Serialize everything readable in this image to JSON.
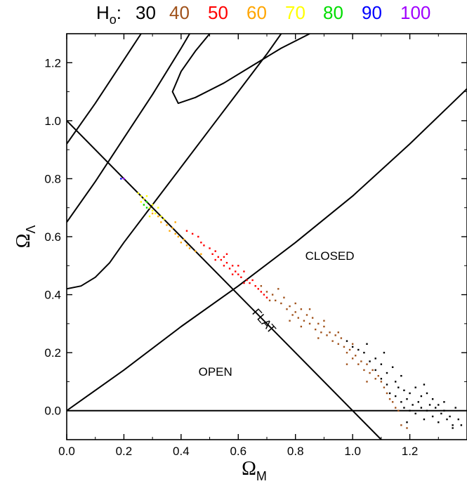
{
  "chart_data": {
    "type": "scatter",
    "legend": {
      "symbol": "H",
      "subscript": "o",
      "separator": ":",
      "entries": [
        {
          "label": "30",
          "color": "#000000"
        },
        {
          "label": "40",
          "color": "#a0521b"
        },
        {
          "label": "50",
          "color": "#ff0000"
        },
        {
          "label": "60",
          "color": "#ffa500"
        },
        {
          "label": "70",
          "color": "#ffff00"
        },
        {
          "label": "80",
          "color": "#00dd00"
        },
        {
          "label": "90",
          "color": "#0000ff"
        },
        {
          "label": "100",
          "color": "#a000ff"
        }
      ]
    },
    "xlabel": {
      "symbol": "Ω",
      "subscript": "M"
    },
    "ylabel": {
      "symbol": "Ω",
      "subscript": "Λ"
    },
    "xlim": [
      0.0,
      1.4
    ],
    "ylim": [
      -0.1,
      1.3
    ],
    "xticks": [
      "0.0",
      "0.2",
      "0.4",
      "0.6",
      "0.8",
      "1.0",
      "1.2"
    ],
    "yticks": [
      "0.0",
      "0.2",
      "0.4",
      "0.6",
      "0.8",
      "1.0",
      "1.2"
    ],
    "grid": false,
    "annotations": [
      {
        "text": "CLOSED",
        "x": 0.92,
        "y": 0.52
      },
      {
        "text": "FLAT",
        "x": 0.68,
        "y": 0.3,
        "rotation": -48
      },
      {
        "text": "OPEN",
        "x": 0.52,
        "y": 0.12
      }
    ],
    "reference_lines": [
      {
        "name": "flat",
        "points": [
          [
            0.0,
            1.0
          ],
          [
            1.1,
            -0.1
          ]
        ]
      },
      {
        "name": "zero",
        "points": [
          [
            0.0,
            0.0
          ],
          [
            1.4,
            0.0
          ]
        ]
      }
    ],
    "age_curves": [
      {
        "points": [
          [
            0.0,
            0.0
          ],
          [
            0.2,
            0.14
          ],
          [
            0.4,
            0.29
          ],
          [
            0.6,
            0.43
          ],
          [
            0.8,
            0.58
          ],
          [
            1.0,
            0.74
          ],
          [
            1.2,
            0.92
          ],
          [
            1.4,
            1.11
          ]
        ]
      },
      {
        "points": [
          [
            0.0,
            0.42
          ],
          [
            0.05,
            0.43
          ],
          [
            0.1,
            0.46
          ],
          [
            0.15,
            0.51
          ],
          [
            0.2,
            0.58
          ],
          [
            0.3,
            0.71
          ],
          [
            0.4,
            0.84
          ],
          [
            0.5,
            0.97
          ],
          [
            0.6,
            1.1
          ],
          [
            0.7,
            1.23
          ],
          [
            0.75,
            1.3
          ]
        ]
      },
      {
        "points": [
          [
            0.0,
            0.65
          ],
          [
            0.1,
            0.79
          ],
          [
            0.2,
            0.94
          ],
          [
            0.3,
            1.09
          ],
          [
            0.4,
            1.25
          ],
          [
            0.43,
            1.3
          ]
        ]
      },
      {
        "points": [
          [
            0.0,
            0.92
          ],
          [
            0.1,
            1.06
          ],
          [
            0.2,
            1.21
          ],
          [
            0.26,
            1.3
          ]
        ]
      },
      {
        "points": [
          [
            0.5,
            1.3
          ],
          [
            0.45,
            1.24
          ],
          [
            0.4,
            1.17
          ],
          [
            0.37,
            1.1
          ],
          [
            0.39,
            1.06
          ],
          [
            0.45,
            1.08
          ],
          [
            0.55,
            1.13
          ],
          [
            0.65,
            1.19
          ],
          [
            0.75,
            1.25
          ],
          [
            0.85,
            1.3
          ]
        ]
      }
    ],
    "series": [
      {
        "name": "30",
        "color": "#000000",
        "points": [
          [
            0.98,
            0.24
          ],
          [
            1.0,
            0.22
          ],
          [
            1.02,
            0.21
          ],
          [
            1.04,
            0.2
          ],
          [
            1.05,
            0.23
          ],
          [
            1.06,
            0.17
          ],
          [
            1.08,
            0.18
          ],
          [
            1.08,
            0.14
          ],
          [
            1.1,
            0.16
          ],
          [
            1.1,
            0.11
          ],
          [
            1.12,
            0.13
          ],
          [
            1.12,
            0.09
          ],
          [
            1.13,
            0.06
          ],
          [
            1.15,
            0.1
          ],
          [
            1.15,
            0.05
          ],
          [
            1.16,
            0.08
          ],
          [
            1.17,
            0.03
          ],
          [
            1.18,
            0.07
          ],
          [
            1.18,
            0.01
          ],
          [
            1.19,
            0.04
          ],
          [
            1.2,
            0.06
          ],
          [
            1.2,
            0.0
          ],
          [
            1.21,
            0.02
          ],
          [
            1.22,
            -0.01
          ],
          [
            1.23,
            0.03
          ],
          [
            1.24,
            0.01
          ],
          [
            1.25,
            -0.03
          ],
          [
            1.26,
            0.0
          ],
          [
            1.27,
            0.02
          ],
          [
            1.28,
            -0.02
          ],
          [
            1.29,
            0.01
          ],
          [
            1.3,
            -0.04
          ],
          [
            1.31,
            -0.01
          ],
          [
            1.32,
            0.0
          ],
          [
            1.33,
            -0.03
          ],
          [
            1.34,
            -0.02
          ],
          [
            1.35,
            -0.05
          ],
          [
            1.36,
            0.01
          ],
          [
            1.37,
            -0.03
          ],
          [
            1.38,
            -0.05
          ],
          [
            1.22,
            0.08
          ],
          [
            1.24,
            0.05
          ],
          [
            1.26,
            0.06
          ],
          [
            1.17,
            0.12
          ],
          [
            1.14,
            0.15
          ],
          [
            1.11,
            0.2
          ],
          [
            1.28,
            0.04
          ],
          [
            1.3,
            0.02
          ],
          [
            1.32,
            0.03
          ],
          [
            1.19,
            -0.04
          ],
          [
            1.25,
            0.09
          ],
          [
            1.35,
            -0.06
          ]
        ]
      },
      {
        "name": "40",
        "color": "#a0521b",
        "points": [
          [
            0.68,
            0.43
          ],
          [
            0.7,
            0.41
          ],
          [
            0.72,
            0.4
          ],
          [
            0.73,
            0.38
          ],
          [
            0.75,
            0.37
          ],
          [
            0.76,
            0.39
          ],
          [
            0.77,
            0.35
          ],
          [
            0.78,
            0.36
          ],
          [
            0.79,
            0.33
          ],
          [
            0.8,
            0.34
          ],
          [
            0.81,
            0.32
          ],
          [
            0.82,
            0.35
          ],
          [
            0.83,
            0.31
          ],
          [
            0.84,
            0.33
          ],
          [
            0.85,
            0.3
          ],
          [
            0.86,
            0.32
          ],
          [
            0.87,
            0.28
          ],
          [
            0.88,
            0.3
          ],
          [
            0.89,
            0.27
          ],
          [
            0.9,
            0.29
          ],
          [
            0.91,
            0.26
          ],
          [
            0.92,
            0.27
          ],
          [
            0.93,
            0.24
          ],
          [
            0.94,
            0.26
          ],
          [
            0.95,
            0.23
          ],
          [
            0.96,
            0.25
          ],
          [
            0.97,
            0.22
          ],
          [
            0.98,
            0.2
          ],
          [
            0.99,
            0.21
          ],
          [
            1.0,
            0.18
          ],
          [
            1.01,
            0.19
          ],
          [
            1.02,
            0.16
          ],
          [
            1.03,
            0.17
          ],
          [
            1.04,
            0.14
          ],
          [
            1.05,
            0.16
          ],
          [
            1.06,
            0.13
          ],
          [
            1.07,
            0.14
          ],
          [
            1.08,
            0.11
          ],
          [
            1.09,
            0.12
          ],
          [
            1.1,
            0.1
          ],
          [
            1.11,
            0.08
          ],
          [
            1.12,
            0.06
          ],
          [
            1.13,
            0.04
          ],
          [
            1.14,
            0.03
          ],
          [
            1.15,
            0.01
          ],
          [
            1.16,
            0.0
          ],
          [
            1.17,
            -0.05
          ],
          [
            1.19,
            -0.06
          ],
          [
            0.74,
            0.42
          ],
          [
            0.8,
            0.37
          ],
          [
            0.85,
            0.35
          ],
          [
            0.9,
            0.31
          ],
          [
            0.95,
            0.27
          ],
          [
            1.0,
            0.23
          ],
          [
            0.78,
            0.31
          ],
          [
            0.88,
            0.25
          ],
          [
            0.98,
            0.16
          ],
          [
            1.05,
            0.1
          ],
          [
            0.71,
            0.38
          ],
          [
            0.82,
            0.29
          ]
        ]
      },
      {
        "name": "50",
        "color": "#ff0000",
        "points": [
          [
            0.42,
            0.62
          ],
          [
            0.44,
            0.61
          ],
          [
            0.46,
            0.6
          ],
          [
            0.47,
            0.58
          ],
          [
            0.48,
            0.57
          ],
          [
            0.5,
            0.56
          ],
          [
            0.51,
            0.54
          ],
          [
            0.52,
            0.55
          ],
          [
            0.53,
            0.53
          ],
          [
            0.54,
            0.52
          ],
          [
            0.55,
            0.53
          ],
          [
            0.56,
            0.51
          ],
          [
            0.57,
            0.49
          ],
          [
            0.58,
            0.5
          ],
          [
            0.59,
            0.48
          ],
          [
            0.6,
            0.47
          ],
          [
            0.61,
            0.46
          ],
          [
            0.62,
            0.48
          ],
          [
            0.63,
            0.45
          ],
          [
            0.64,
            0.44
          ],
          [
            0.65,
            0.45
          ],
          [
            0.66,
            0.43
          ],
          [
            0.67,
            0.42
          ],
          [
            0.68,
            0.41
          ],
          [
            0.69,
            0.4
          ],
          [
            0.7,
            0.39
          ],
          [
            0.55,
            0.5
          ],
          [
            0.58,
            0.47
          ],
          [
            0.6,
            0.5
          ],
          [
            0.62,
            0.44
          ],
          [
            0.52,
            0.52
          ],
          [
            0.56,
            0.54
          ]
        ]
      },
      {
        "name": "60",
        "color": "#ffa500",
        "points": [
          [
            0.3,
            0.68
          ],
          [
            0.32,
            0.67
          ],
          [
            0.33,
            0.65
          ],
          [
            0.35,
            0.64
          ],
          [
            0.36,
            0.62
          ],
          [
            0.37,
            0.63
          ],
          [
            0.38,
            0.61
          ],
          [
            0.39,
            0.6
          ],
          [
            0.4,
            0.58
          ],
          [
            0.41,
            0.59
          ],
          [
            0.42,
            0.57
          ],
          [
            0.43,
            0.56
          ],
          [
            0.45,
            0.55
          ],
          [
            0.47,
            0.54
          ],
          [
            0.38,
            0.65
          ]
        ]
      },
      {
        "name": "70",
        "color": "#ffff00",
        "points": [
          [
            0.25,
            0.75
          ],
          [
            0.26,
            0.74
          ],
          [
            0.27,
            0.73
          ],
          [
            0.28,
            0.72
          ],
          [
            0.27,
            0.71
          ],
          [
            0.29,
            0.7
          ],
          [
            0.3,
            0.69
          ],
          [
            0.31,
            0.68
          ],
          [
            0.28,
            0.74
          ],
          [
            0.26,
            0.72
          ],
          [
            0.3,
            0.71
          ],
          [
            0.29,
            0.67
          ],
          [
            0.32,
            0.7
          ],
          [
            0.33,
            0.67
          ],
          [
            0.34,
            0.66
          ]
        ]
      },
      {
        "name": "80",
        "color": "#00dd00",
        "points": [
          [
            0.27,
            0.71
          ],
          [
            0.28,
            0.72
          ],
          [
            0.28,
            0.7
          ]
        ]
      },
      {
        "name": "90",
        "color": "#0000ff",
        "points": [
          [
            0.19,
            0.8
          ]
        ]
      },
      {
        "name": "100",
        "color": "#a000ff",
        "points": [
          [
            0.2,
            0.8
          ]
        ]
      }
    ]
  }
}
